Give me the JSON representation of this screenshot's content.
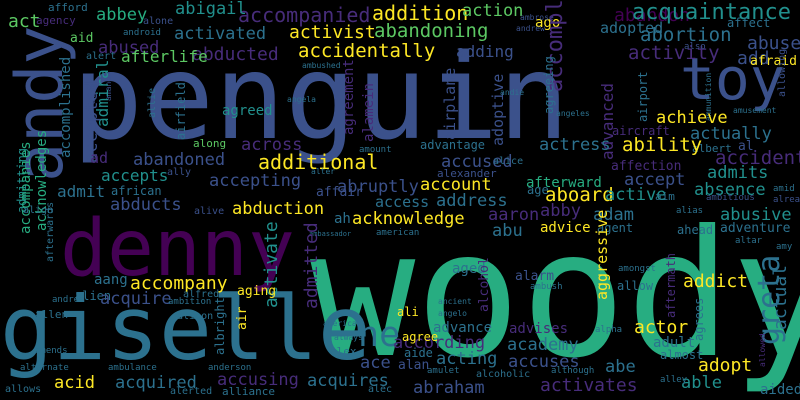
{
  "palette": {
    "background": "#000000",
    "dark_purple": "#440154",
    "purple": "#472c7a",
    "indigo": "#3b518b",
    "blue": "#2c718e",
    "teal": "#21908d",
    "green": "#27ad81",
    "light_green": "#5cc863",
    "lime": "#aadc32",
    "yellow": "#fde725"
  },
  "words": [
    {
      "text": "penguin",
      "color": "#3b518b"
    },
    {
      "text": "woody",
      "color": "#27ad81"
    },
    {
      "text": "andy",
      "color": "#3b518b"
    },
    {
      "text": "denny",
      "color": "#440154"
    },
    {
      "text": "giselle",
      "color": "#2c718e"
    },
    {
      "text": "toy",
      "color": "#3b518b"
    },
    {
      "text": "greta",
      "color": "#2c718e"
    },
    {
      "text": "ne",
      "color": "#2c718e"
    },
    {
      "text": "accompanied",
      "color": "#472c7a"
    },
    {
      "text": "addition",
      "color": "#fde725"
    },
    {
      "text": "action",
      "color": "#5cc863"
    },
    {
      "text": "abandon",
      "color": "#440154"
    },
    {
      "text": "acquaintance",
      "color": "#21908d"
    },
    {
      "text": "abbey",
      "color": "#27ad81"
    },
    {
      "text": "abigail",
      "color": "#21908d"
    },
    {
      "text": "act",
      "color": "#5cc863"
    },
    {
      "text": "afford",
      "color": "#2c718e"
    },
    {
      "text": "agency",
      "color": "#472c7a"
    },
    {
      "text": "alone",
      "color": "#3b518b"
    },
    {
      "text": "ago",
      "color": "#fde725"
    },
    {
      "text": "ambrose",
      "color": "#3b518b"
    },
    {
      "text": "andrew",
      "color": "#3b518b"
    },
    {
      "text": "affect",
      "color": "#2c718e"
    },
    {
      "text": "activated",
      "color": "#2c718e"
    },
    {
      "text": "activist",
      "color": "#fde725"
    },
    {
      "text": "abandoning",
      "color": "#5cc863"
    },
    {
      "text": "adopted",
      "color": "#2c718e"
    },
    {
      "text": "abortion",
      "color": "#2c718e"
    },
    {
      "text": "abuse",
      "color": "#3b518b"
    },
    {
      "text": "aid",
      "color": "#5cc863"
    },
    {
      "text": "android",
      "color": "#2c718e"
    },
    {
      "text": "abused",
      "color": "#472c7a"
    },
    {
      "text": "abducted",
      "color": "#472c7a"
    },
    {
      "text": "accidentally",
      "color": "#fde725"
    },
    {
      "text": "adding",
      "color": "#3b518b"
    },
    {
      "text": "accomplice",
      "color": "#472c7a"
    },
    {
      "text": "activity",
      "color": "#472c7a"
    },
    {
      "text": "add",
      "color": "#3b518b"
    },
    {
      "text": "afraid",
      "color": "#fde725"
    },
    {
      "text": "also",
      "color": "#3b518b"
    },
    {
      "text": "alert",
      "color": "#2c718e"
    },
    {
      "text": "afterlife",
      "color": "#5cc863"
    },
    {
      "text": "ambushed",
      "color": "#2c718e"
    },
    {
      "text": "agreeing",
      "color": "#2c718e"
    },
    {
      "text": "allowing",
      "color": "#3b518b"
    },
    {
      "text": "among",
      "color": "#3b518b"
    },
    {
      "text": "amanda",
      "color": "#3b518b"
    },
    {
      "text": "admiral",
      "color": "#21908d"
    },
    {
      "text": "airfield",
      "color": "#2c718e"
    },
    {
      "text": "allie",
      "color": "#2c718e"
    },
    {
      "text": "agreed",
      "color": "#21908d"
    },
    {
      "text": "angela",
      "color": "#2c718e"
    },
    {
      "text": "agreement",
      "color": "#472c7a"
    },
    {
      "text": "alamein",
      "color": "#472c7a"
    },
    {
      "text": "airplane",
      "color": "#3b518b"
    },
    {
      "text": "adoptive",
      "color": "#3b518b"
    },
    {
      "text": "andie",
      "color": "#2c718e"
    },
    {
      "text": "angeles",
      "color": "#2c718e"
    },
    {
      "text": "advanced",
      "color": "#472c7a"
    },
    {
      "text": "airport",
      "color": "#2c718e"
    },
    {
      "text": "ammunition",
      "color": "#2c718e"
    },
    {
      "text": "amusement",
      "color": "#2c718e"
    },
    {
      "text": "achieve",
      "color": "#fde725"
    },
    {
      "text": "actually",
      "color": "#2c718e"
    },
    {
      "text": "aircraft",
      "color": "#472c7a"
    },
    {
      "text": "albert",
      "color": "#2c718e"
    },
    {
      "text": "al",
      "color": "#3b518b"
    },
    {
      "text": "accomplished",
      "color": "#2c718e"
    },
    {
      "text": "accepted",
      "color": "#3b518b"
    },
    {
      "text": "ad",
      "color": "#472c7a"
    },
    {
      "text": "across",
      "color": "#472c7a"
    },
    {
      "text": "actress",
      "color": "#2c718e"
    },
    {
      "text": "ability",
      "color": "#fde725"
    },
    {
      "text": "accident",
      "color": "#472c7a"
    },
    {
      "text": "admitting",
      "color": "#21908d"
    },
    {
      "text": "along",
      "color": "#5cc863"
    },
    {
      "text": "advantage",
      "color": "#2c718e"
    },
    {
      "text": "abandoned",
      "color": "#3b518b"
    },
    {
      "text": "additional",
      "color": "#fde725"
    },
    {
      "text": "amount",
      "color": "#2c718e"
    },
    {
      "text": "accused",
      "color": "#3b518b"
    },
    {
      "text": "alice",
      "color": "#2c718e"
    },
    {
      "text": "affection",
      "color": "#472c7a"
    },
    {
      "text": "admits",
      "color": "#21908d"
    },
    {
      "text": "accepts",
      "color": "#21908d"
    },
    {
      "text": "ally",
      "color": "#3b518b"
    },
    {
      "text": "accepting",
      "color": "#3b518b"
    },
    {
      "text": "alexander",
      "color": "#3b518b"
    },
    {
      "text": "afterward",
      "color": "#27ad81"
    },
    {
      "text": "accept",
      "color": "#3b518b"
    },
    {
      "text": "absence",
      "color": "#21908d"
    },
    {
      "text": "aboard",
      "color": "#fde725"
    },
    {
      "text": "admit",
      "color": "#2c718e"
    },
    {
      "text": "african",
      "color": "#2c718e"
    },
    {
      "text": "abruptly",
      "color": "#3b518b"
    },
    {
      "text": "account",
      "color": "#fde725"
    },
    {
      "text": "age",
      "color": "#2c718e"
    },
    {
      "text": "active",
      "color": "#21908d"
    },
    {
      "text": "aim",
      "color": "#2c718e"
    },
    {
      "text": "amid",
      "color": "#2c718e"
    },
    {
      "text": "ambitious",
      "color": "#3b518b"
    },
    {
      "text": "already",
      "color": "#3b518b"
    },
    {
      "text": "alter",
      "color": "#2c718e"
    },
    {
      "text": "affair",
      "color": "#3b518b"
    },
    {
      "text": "access",
      "color": "#2c718e"
    },
    {
      "text": "address",
      "color": "#2c718e"
    },
    {
      "text": "accompanies",
      "color": "#27ad81"
    },
    {
      "text": "acknowledges",
      "color": "#27ad81"
    },
    {
      "text": "abducts",
      "color": "#3b518b"
    },
    {
      "text": "abduction",
      "color": "#fde725"
    },
    {
      "text": "align",
      "color": "#2c718e"
    },
    {
      "text": "alive",
      "color": "#3b518b"
    },
    {
      "text": "abby",
      "color": "#472c7a"
    },
    {
      "text": "adam",
      "color": "#2c718e"
    },
    {
      "text": "abusive",
      "color": "#21908d"
    },
    {
      "text": "alias",
      "color": "#2c718e"
    },
    {
      "text": "adventure",
      "color": "#2c718e"
    },
    {
      "text": "ahead",
      "color": "#2c718e"
    },
    {
      "text": "acknowledge",
      "color": "#fde725"
    },
    {
      "text": "aaron",
      "color": "#472c7a"
    },
    {
      "text": "abu",
      "color": "#2c718e"
    },
    {
      "text": "advice",
      "color": "#fde725"
    },
    {
      "text": "agent",
      "color": "#2c718e"
    },
    {
      "text": "afterwards",
      "color": "#2c718e"
    },
    {
      "text": "ah",
      "color": "#2c718e"
    },
    {
      "text": "ambassador",
      "color": "#2c718e"
    },
    {
      "text": "american",
      "color": "#2c718e"
    },
    {
      "text": "activate",
      "color": "#21908d"
    },
    {
      "text": "admitted",
      "color": "#472c7a"
    },
    {
      "text": "altar",
      "color": "#2c718e"
    },
    {
      "text": "amy",
      "color": "#2c718e"
    },
    {
      "text": "aang",
      "color": "#2c718e"
    },
    {
      "text": "accompany",
      "color": "#fde725"
    },
    {
      "text": "alien",
      "color": "#2c718e"
    },
    {
      "text": "acquire",
      "color": "#3b518b"
    },
    {
      "text": "aged",
      "color": "#2c718e"
    },
    {
      "text": "alarm",
      "color": "#3b518b"
    },
    {
      "text": "aggressive",
      "color": "#fde725"
    },
    {
      "text": "alcohol",
      "color": "#472c7a"
    },
    {
      "text": "ambush",
      "color": "#2c718e"
    },
    {
      "text": "amongst",
      "color": "#2c718e"
    },
    {
      "text": "allow",
      "color": "#2c718e"
    },
    {
      "text": "aftermath",
      "color": "#472c7a"
    },
    {
      "text": "addict",
      "color": "#fde725"
    },
    {
      "text": "actual",
      "color": "#2c718e"
    },
    {
      "text": "alfred",
      "color": "#2c718e"
    },
    {
      "text": "aging",
      "color": "#fde725"
    },
    {
      "text": "ambition",
      "color": "#2c718e"
    },
    {
      "text": "andrea",
      "color": "#2c718e"
    },
    {
      "text": "allen",
      "color": "#2c718e"
    },
    {
      "text": "alison",
      "color": "#2c718e"
    },
    {
      "text": "albright",
      "color": "#2c718e"
    },
    {
      "text": "air",
      "color": "#fde725"
    },
    {
      "text": "ancient",
      "color": "#2c718e"
    },
    {
      "text": "angelo",
      "color": "#2c718e"
    },
    {
      "text": "agrees",
      "color": "#2c718e"
    },
    {
      "text": "actor",
      "color": "#fde725"
    },
    {
      "text": "america",
      "color": "#2c718e"
    },
    {
      "text": "always",
      "color": "#2c718e"
    },
    {
      "text": "ali",
      "color": "#fde725"
    },
    {
      "text": "advance",
      "color": "#2c718e"
    },
    {
      "text": "according",
      "color": "#472c7a"
    },
    {
      "text": "academy",
      "color": "#2c718e"
    },
    {
      "text": "advises",
      "color": "#472c7a"
    },
    {
      "text": "alpha",
      "color": "#2c718e"
    },
    {
      "text": "adult",
      "color": "#2c718e"
    },
    {
      "text": "allowed",
      "color": "#472c7a"
    },
    {
      "text": "amends",
      "color": "#2c718e"
    },
    {
      "text": "agree",
      "color": "#fde725"
    },
    {
      "text": "aide",
      "color": "#2c718e"
    },
    {
      "text": "alex",
      "color": "#2c718e"
    },
    {
      "text": "acting",
      "color": "#2c718e"
    },
    {
      "text": "accuses",
      "color": "#3b518b"
    },
    {
      "text": "almost",
      "color": "#2c718e"
    },
    {
      "text": "ace",
      "color": "#3b518b"
    },
    {
      "text": "alan",
      "color": "#3b518b"
    },
    {
      "text": "abe",
      "color": "#2c718e"
    },
    {
      "text": "adopt",
      "color": "#fde725"
    },
    {
      "text": "alternate",
      "color": "#2c718e"
    },
    {
      "text": "ambulance",
      "color": "#2c718e"
    },
    {
      "text": "anderson",
      "color": "#2c718e"
    },
    {
      "text": "amulet",
      "color": "#2c718e"
    },
    {
      "text": "alcoholic",
      "color": "#2c718e"
    },
    {
      "text": "although",
      "color": "#2c718e"
    },
    {
      "text": "able",
      "color": "#21908d"
    },
    {
      "text": "alley",
      "color": "#2c718e"
    },
    {
      "text": "acid",
      "color": "#fde725"
    },
    {
      "text": "acquired",
      "color": "#2c718e"
    },
    {
      "text": "accusing",
      "color": "#472c7a"
    },
    {
      "text": "acquires",
      "color": "#2c718e"
    },
    {
      "text": "abraham",
      "color": "#3b518b"
    },
    {
      "text": "activates",
      "color": "#472c7a"
    },
    {
      "text": "allows",
      "color": "#2c718e"
    },
    {
      "text": "alerted",
      "color": "#2c718e"
    },
    {
      "text": "alliance",
      "color": "#2c718e"
    },
    {
      "text": "alec",
      "color": "#2c718e"
    },
    {
      "text": "aided",
      "color": "#2c718e"
    }
  ]
}
